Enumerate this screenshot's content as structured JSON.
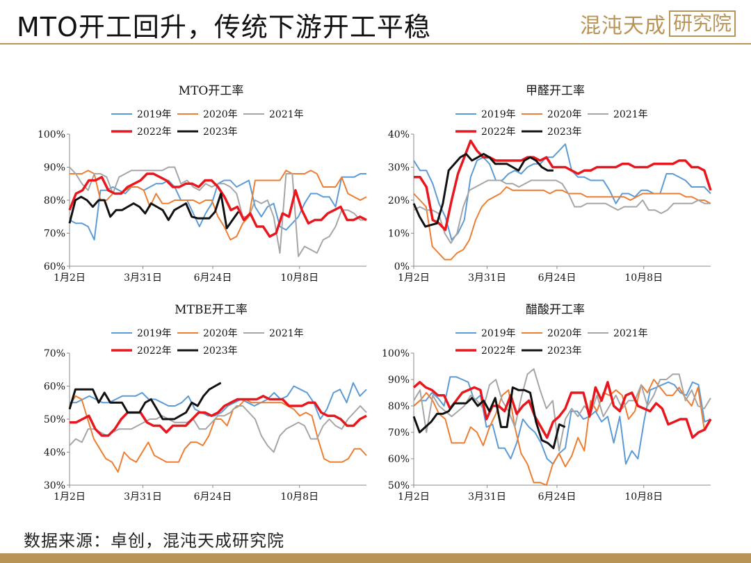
{
  "header": {
    "title": "MTO开工回升，传统下游开工平稳",
    "logo_text": "混沌天成",
    "logo_box": "研究院"
  },
  "footer": {
    "source": "数据来源：卓创，混沌天成研究院"
  },
  "colors": {
    "2019年": "#5b9bd5",
    "2020年": "#ed7d31",
    "2021年": "#a5a5a5",
    "2022年": "#e8161d",
    "2023年": "#111111",
    "brand": "#b89456"
  },
  "chart_data": [
    {
      "type": "line",
      "title": "MTO开工率",
      "ylim": [
        0.6,
        1.0
      ],
      "yticks": [
        "60%",
        "70%",
        "80%",
        "90%",
        "100%"
      ],
      "xticks": [
        "1月2日",
        "3月31日",
        "6月24日",
        "10月8日"
      ],
      "legend": [
        "2019年",
        "2020年",
        "2021年",
        "2022年",
        "2023年"
      ],
      "series": [
        {
          "name": "2019年",
          "values": [
            0.74,
            0.73,
            0.73,
            0.72,
            0.68,
            0.83,
            0.83,
            0.84,
            0.83,
            0.82,
            0.84,
            0.84,
            0.83,
            0.84,
            0.85,
            0.85,
            0.86,
            0.84,
            0.8,
            0.8,
            0.76,
            0.72,
            0.76,
            0.79,
            0.85,
            0.86,
            0.86,
            0.84,
            0.85,
            0.86,
            0.78,
            0.75,
            0.78,
            0.79,
            0.72,
            0.71,
            0.73,
            0.75,
            0.79,
            0.82,
            0.82,
            0.81,
            0.81,
            0.78,
            0.87,
            0.87,
            0.87,
            0.88,
            0.88
          ]
        },
        {
          "name": "2020年",
          "values": [
            0.88,
            0.88,
            0.88,
            0.89,
            0.88,
            0.8,
            0.8,
            0.82,
            0.82,
            0.83,
            0.84,
            0.84,
            0.83,
            0.78,
            0.82,
            0.79,
            0.79,
            0.8,
            0.8,
            0.8,
            0.8,
            0.79,
            0.8,
            0.8,
            0.75,
            0.72,
            0.68,
            0.69,
            0.73,
            0.75,
            0.86,
            0.86,
            0.86,
            0.86,
            0.86,
            0.89,
            0.88,
            0.88,
            0.88,
            0.89,
            0.88,
            0.84,
            0.84,
            0.84,
            0.87,
            0.82,
            0.81,
            0.8,
            0.81
          ]
        },
        {
          "name": "2021年",
          "values": [
            0.9,
            0.88,
            0.85,
            0.83,
            0.88,
            0.88,
            0.87,
            0.82,
            0.87,
            0.88,
            0.89,
            0.89,
            0.89,
            0.89,
            0.89,
            0.89,
            0.9,
            0.9,
            0.85,
            0.86,
            0.84,
            0.83,
            0.85,
            0.84,
            0.85,
            0.85,
            0.84,
            0.82,
            0.75,
            0.75,
            0.8,
            0.79,
            0.8,
            0.75,
            0.64,
            0.88,
            0.88,
            0.63,
            0.66,
            0.65,
            0.64,
            0.68,
            0.69,
            0.72,
            0.77,
            0.77,
            0.76,
            0.74,
            0.74
          ]
        },
        {
          "name": "2022年",
          "values": [
            0.77,
            0.82,
            0.83,
            0.86,
            0.86,
            0.87,
            0.83,
            0.82,
            0.82,
            0.84,
            0.85,
            0.86,
            0.88,
            0.88,
            0.87,
            0.86,
            0.84,
            0.84,
            0.85,
            0.85,
            0.84,
            0.86,
            0.86,
            0.84,
            0.81,
            0.77,
            0.78,
            0.74,
            0.76,
            0.72,
            0.72,
            0.69,
            0.7,
            0.76,
            0.75,
            0.83,
            0.77,
            0.73,
            0.74,
            0.74,
            0.76,
            0.77,
            0.78,
            0.74,
            0.74,
            0.75,
            0.74
          ]
        },
        {
          "name": "2023年",
          "values": [
            0.73,
            0.8,
            0.81,
            0.8,
            0.78,
            0.8,
            0.8,
            0.75,
            0.77,
            0.77,
            0.78,
            0.79,
            0.78,
            0.76,
            0.79,
            0.78,
            0.77,
            0.74,
            0.77,
            0.78,
            0.79,
            0.75,
            0.745,
            0.745,
            0.745,
            0.765,
            0.82,
            0.715,
            0.74,
            0.765
          ]
        }
      ]
    },
    {
      "type": "line",
      "title": "甲醛开工率",
      "ylim": [
        0,
        0.4
      ],
      "yticks": [
        "0%",
        "10%",
        "20%",
        "30%",
        "40%"
      ],
      "xticks": [
        "1月2日",
        "3月31日",
        "6月24日",
        "10月8日"
      ],
      "legend": [
        "2019年",
        "2020年",
        "2021年",
        "2022年",
        "2023年"
      ],
      "series": [
        {
          "name": "2019年",
          "values": [
            0.32,
            0.29,
            0.29,
            0.25,
            0.19,
            0.15,
            0.08,
            0.1,
            0.14,
            0.27,
            0.32,
            0.33,
            0.31,
            0.26,
            0.26,
            0.28,
            0.29,
            0.28,
            0.3,
            0.31,
            0.31,
            0.33,
            0.33,
            0.35,
            0.37,
            0.29,
            0.27,
            0.27,
            0.26,
            0.26,
            0.26,
            0.23,
            0.19,
            0.22,
            0.22,
            0.21,
            0.23,
            0.23,
            0.22,
            0.22,
            0.28,
            0.28,
            0.27,
            0.26,
            0.24,
            0.24,
            0.24,
            0.22
          ]
        },
        {
          "name": "2020年",
          "values": [
            0.22,
            0.2,
            0.18,
            0.06,
            0.04,
            0.02,
            0.02,
            0.04,
            0.05,
            0.08,
            0.14,
            0.18,
            0.2,
            0.21,
            0.22,
            0.24,
            0.23,
            0.23,
            0.23,
            0.23,
            0.23,
            0.23,
            0.22,
            0.23,
            0.23,
            0.22,
            0.22,
            0.22,
            0.21,
            0.21,
            0.21,
            0.21,
            0.21,
            0.21,
            0.21,
            0.2,
            0.21,
            0.22,
            0.22,
            0.22,
            0.22,
            0.22,
            0.22,
            0.22,
            0.21,
            0.21,
            0.2,
            0.2,
            0.19
          ]
        },
        {
          "name": "2021年",
          "values": [
            0.17,
            0.18,
            0.17,
            0.17,
            0.16,
            0.1,
            0.07,
            0.1,
            0.18,
            0.23,
            0.24,
            0.25,
            0.26,
            0.26,
            0.26,
            0.25,
            0.25,
            0.24,
            0.25,
            0.26,
            0.26,
            0.26,
            0.26,
            0.26,
            0.25,
            0.22,
            0.18,
            0.18,
            0.19,
            0.19,
            0.19,
            0.19,
            0.18,
            0.17,
            0.18,
            0.18,
            0.18,
            0.2,
            0.17,
            0.17,
            0.16,
            0.17,
            0.19,
            0.19,
            0.19,
            0.19,
            0.2,
            0.19,
            0.19
          ]
        },
        {
          "name": "2022年",
          "values": [
            0.27,
            0.27,
            0.24,
            0.14,
            0.13,
            0.11,
            0.2,
            0.28,
            0.33,
            0.38,
            0.35,
            0.33,
            0.33,
            0.32,
            0.32,
            0.32,
            0.32,
            0.32,
            0.33,
            0.33,
            0.32,
            0.33,
            0.3,
            0.3,
            0.3,
            0.29,
            0.28,
            0.29,
            0.29,
            0.3,
            0.3,
            0.3,
            0.3,
            0.31,
            0.31,
            0.3,
            0.3,
            0.3,
            0.31,
            0.31,
            0.31,
            0.31,
            0.32,
            0.32,
            0.3,
            0.3,
            0.29,
            0.23
          ]
        },
        {
          "name": "2023年",
          "values": [
            0.19,
            0.15,
            0.12,
            0.125,
            0.13,
            0.19,
            0.29,
            0.31,
            0.33,
            0.34,
            0.32,
            0.33,
            0.34,
            0.33,
            0.31,
            0.31,
            0.31,
            0.3,
            0.29,
            0.32,
            0.33,
            0.32,
            0.3,
            0.29,
            0.29
          ]
        }
      ]
    },
    {
      "type": "line",
      "title": "MTBE开工率",
      "ylim": [
        0.3,
        0.7
      ],
      "yticks": [
        "30%",
        "40%",
        "50%",
        "60%",
        "70%"
      ],
      "xticks": [
        "1月2日",
        "3月31日",
        "6月24日",
        "10月8日"
      ],
      "legend": [
        "2019年",
        "2020年",
        "2021年",
        "2022年",
        "2023年"
      ],
      "series": [
        {
          "name": "2019年",
          "values": [
            0.55,
            0.55,
            0.56,
            0.57,
            0.56,
            0.55,
            0.55,
            0.56,
            0.57,
            0.57,
            0.57,
            0.58,
            0.56,
            0.56,
            0.55,
            0.54,
            0.54,
            0.55,
            0.57,
            0.53,
            0.52,
            0.51,
            0.51,
            0.52,
            0.54,
            0.55,
            0.56,
            0.55,
            0.54,
            0.55,
            0.56,
            0.58,
            0.56,
            0.57,
            0.6,
            0.59,
            0.58,
            0.55,
            0.5,
            0.53,
            0.58,
            0.59,
            0.55,
            0.61,
            0.57,
            0.59
          ]
        },
        {
          "name": "2020年",
          "values": [
            0.54,
            0.57,
            0.56,
            0.5,
            0.44,
            0.41,
            0.38,
            0.37,
            0.34,
            0.4,
            0.38,
            0.37,
            0.4,
            0.43,
            0.39,
            0.38,
            0.37,
            0.37,
            0.37,
            0.41,
            0.43,
            0.43,
            0.42,
            0.45,
            0.5,
            0.5,
            0.48,
            0.53,
            0.54,
            0.56,
            0.55,
            0.55,
            0.55,
            0.55,
            0.55,
            0.55,
            0.54,
            0.53,
            0.51,
            0.52,
            0.51,
            0.44,
            0.38,
            0.37,
            0.37,
            0.37,
            0.38,
            0.41,
            0.41,
            0.39
          ]
        },
        {
          "name": "2021年",
          "values": [
            0.42,
            0.44,
            0.43,
            0.47,
            0.47,
            0.46,
            0.45,
            0.46,
            0.47,
            0.47,
            0.47,
            0.48,
            0.49,
            0.5,
            0.5,
            0.51,
            0.5,
            0.49,
            0.49,
            0.49,
            0.5,
            0.47,
            0.47,
            0.49,
            0.51,
            0.51,
            0.52,
            0.54,
            0.54,
            0.52,
            0.5,
            0.45,
            0.42,
            0.4,
            0.45,
            0.47,
            0.48,
            0.49,
            0.48,
            0.44,
            0.44,
            0.48,
            0.5,
            0.48,
            0.47,
            0.5,
            0.52,
            0.54,
            0.52
          ]
        },
        {
          "name": "2022年",
          "values": [
            0.49,
            0.49,
            0.5,
            0.51,
            0.47,
            0.45,
            0.45,
            0.47,
            0.5,
            0.52,
            0.52,
            0.52,
            0.49,
            0.48,
            0.48,
            0.46,
            0.48,
            0.48,
            0.48,
            0.5,
            0.52,
            0.52,
            0.51,
            0.52,
            0.54,
            0.55,
            0.56,
            0.56,
            0.56,
            0.56,
            0.57,
            0.56,
            0.56,
            0.56,
            0.54,
            0.54,
            0.54,
            0.55,
            0.55,
            0.52,
            0.51,
            0.51,
            0.5,
            0.48,
            0.48,
            0.5,
            0.51
          ]
        },
        {
          "name": "2023年",
          "values": [
            0.53,
            0.59,
            0.59,
            0.59,
            0.59,
            0.55,
            0.58,
            0.55,
            0.55,
            0.55,
            0.52,
            0.52,
            0.52,
            0.55,
            0.56,
            0.53,
            0.5,
            0.5,
            0.5,
            0.51,
            0.52,
            0.55,
            0.54,
            0.57,
            0.59,
            0.6,
            0.61
          ]
        }
      ]
    },
    {
      "type": "line",
      "title": "醋酸开工率",
      "ylim": [
        0.5,
        1.0
      ],
      "yticks": [
        "50%",
        "60%",
        "70%",
        "80%",
        "90%",
        "100%"
      ],
      "xticks": [
        "1月2日",
        "3月31日",
        "6月24日",
        "10月8日"
      ],
      "legend": [
        "2019年",
        "2020年",
        "2021年",
        "2022年",
        "2023年"
      ],
      "series": [
        {
          "name": "2019年",
          "values": [
            0.8,
            0.82,
            0.82,
            0.85,
            0.83,
            0.8,
            0.91,
            0.91,
            0.9,
            0.89,
            0.82,
            0.84,
            0.72,
            0.73,
            0.64,
            0.64,
            0.6,
            0.66,
            0.75,
            0.72,
            0.7,
            0.66,
            0.6,
            0.58,
            0.62,
            0.64,
            0.78,
            0.78,
            0.75,
            0.76,
            0.78,
            0.74,
            0.76,
            0.66,
            0.76,
            0.58,
            0.63,
            0.6,
            0.74,
            0.86,
            0.87,
            0.88,
            0.89,
            0.88,
            0.85,
            0.84,
            0.89,
            0.88,
            0.74,
            0.75
          ]
        },
        {
          "name": "2020年",
          "values": [
            0.8,
            0.82,
            0.85,
            0.82,
            0.77,
            0.75,
            0.66,
            0.66,
            0.66,
            0.72,
            0.7,
            0.65,
            0.72,
            0.77,
            0.84,
            0.86,
            0.72,
            0.62,
            0.58,
            0.51,
            0.51,
            0.5,
            0.58,
            0.62,
            0.57,
            0.61,
            0.68,
            0.63,
            0.82,
            0.78,
            0.85,
            0.84,
            0.86,
            0.84,
            0.75,
            0.78,
            0.88,
            0.85,
            0.9,
            0.87,
            0.84,
            0.84,
            0.87,
            0.83,
            0.8,
            0.87,
            0.71,
            0.75
          ]
        },
        {
          "name": "2021年",
          "values": [
            0.82,
            0.86,
            0.7,
            0.84,
            0.8,
            0.78,
            0.76,
            0.78,
            0.8,
            0.84,
            0.82,
            0.79,
            0.88,
            0.9,
            0.82,
            0.78,
            0.72,
            0.83,
            0.92,
            0.94,
            0.86,
            0.79,
            0.82,
            0.63,
            0.75,
            0.79,
            0.76,
            0.8,
            0.77,
            0.84,
            0.76,
            0.8,
            0.84,
            0.79,
            0.82,
            0.82,
            0.88,
            0.8,
            0.84,
            0.9,
            0.9,
            0.92,
            0.92,
            0.82,
            0.86,
            0.8,
            0.79,
            0.83
          ]
        },
        {
          "name": "2022年",
          "values": [
            0.87,
            0.89,
            0.87,
            0.86,
            0.84,
            0.84,
            0.79,
            0.82,
            0.85,
            0.86,
            0.87,
            0.86,
            0.75,
            0.8,
            0.8,
            0.78,
            0.84,
            0.77,
            0.8,
            0.82,
            0.76,
            0.72,
            0.68,
            0.74,
            0.76,
            0.79,
            0.85,
            0.85,
            0.85,
            0.76,
            0.87,
            0.82,
            0.89,
            0.8,
            0.78,
            0.84,
            0.85,
            0.8,
            0.79,
            0.78,
            0.81,
            0.79,
            0.73,
            0.74,
            0.75,
            0.75,
            0.68,
            0.7,
            0.71,
            0.75
          ]
        },
        {
          "name": "2023年",
          "values": [
            0.76,
            0.7,
            0.72,
            0.74,
            0.77,
            0.77,
            0.78,
            0.81,
            0.81,
            0.81,
            0.83,
            0.8,
            0.82,
            0.78,
            0.83,
            0.72,
            0.72,
            0.87,
            0.86,
            0.86,
            0.85,
            0.74,
            0.67,
            0.66,
            0.64,
            0.73,
            0.72
          ]
        }
      ]
    }
  ]
}
